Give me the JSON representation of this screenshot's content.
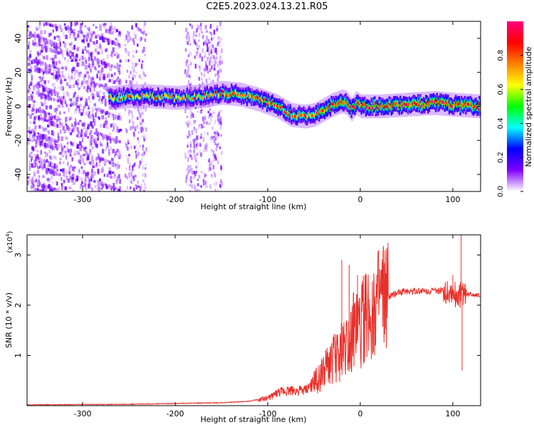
{
  "title": "C2E5.2023.024.13.21.R05",
  "chart_data": [
    {
      "type": "heatmap",
      "xlabel": "Height of straight line (km)",
      "ylabel": "Frequency (Hz)",
      "xlim": [
        -360,
        130
      ],
      "ylim": [
        -50,
        50
      ],
      "x_ticks": [
        -300,
        -200,
        -100,
        0,
        100
      ],
      "y_ticks": [
        -40,
        -20,
        0,
        20,
        40
      ],
      "colorbar": {
        "label": "Normalized spectral amplitude",
        "range": [
          0,
          1
        ],
        "ticks": [
          "0.0",
          "0.2",
          "0.4",
          "0.6",
          "0.8"
        ],
        "colormap": [
          "#ffffff",
          "#8000ff",
          "#0000ff",
          "#00ffff",
          "#00ff00",
          "#ffff00",
          "#ff8000",
          "#ff0000",
          "#ff0080"
        ]
      },
      "ridge": {
        "x": [
          -270,
          -250,
          -230,
          -200,
          -170,
          -150,
          -130,
          -110,
          -90,
          -75,
          -60,
          -50,
          -40,
          -30,
          -20,
          -15,
          -10,
          -5,
          0,
          20,
          50,
          80,
          100,
          130
        ],
        "y": [
          5,
          6,
          6,
          5,
          6,
          8,
          7,
          4,
          0,
          -5,
          -6,
          -5,
          -2,
          1,
          3,
          2,
          -2,
          2,
          0,
          0,
          1,
          2,
          1,
          0
        ]
      }
    },
    {
      "type": "line",
      "xlabel": "Height of straight line (km)",
      "ylabel": "SNR (10 * v/v)",
      "y_multiplier": "(x10",
      "y_multiplier_exp": "4",
      "xlim": [
        -360,
        130
      ],
      "ylim": [
        0,
        3.4
      ],
      "x_ticks": [
        -300,
        -200,
        -100,
        0,
        100
      ],
      "y_ticks": [
        1,
        2,
        3
      ],
      "color": "#e8302a",
      "envelope": {
        "x": [
          -360,
          -250,
          -150,
          -120,
          -100,
          -90,
          -80,
          -70,
          -60,
          -50,
          -40,
          -30,
          -20,
          -10,
          0,
          10,
          20,
          30,
          40,
          50,
          80,
          95,
          100,
          105,
          108,
          110,
          115,
          130
        ],
        "y": [
          0.01,
          0.02,
          0.05,
          0.08,
          0.15,
          0.25,
          0.3,
          0.3,
          0.3,
          0.45,
          0.65,
          0.9,
          1.1,
          1.4,
          1.6,
          1.85,
          2.0,
          2.15,
          2.25,
          2.28,
          2.28,
          2.28,
          2.25,
          2.2,
          2.2,
          2.25,
          2.22,
          2.2
        ]
      },
      "spikes": [
        {
          "x": -20,
          "y": 2.9
        },
        {
          "x": -12,
          "y": 2.8
        },
        {
          "x": -3,
          "y": 2.6
        },
        {
          "x": 5,
          "y": 2.1
        },
        {
          "x": 100,
          "y": 2.6
        },
        {
          "x": 109,
          "y": 3.4
        },
        {
          "x": 110,
          "y": 0.7
        }
      ]
    }
  ]
}
